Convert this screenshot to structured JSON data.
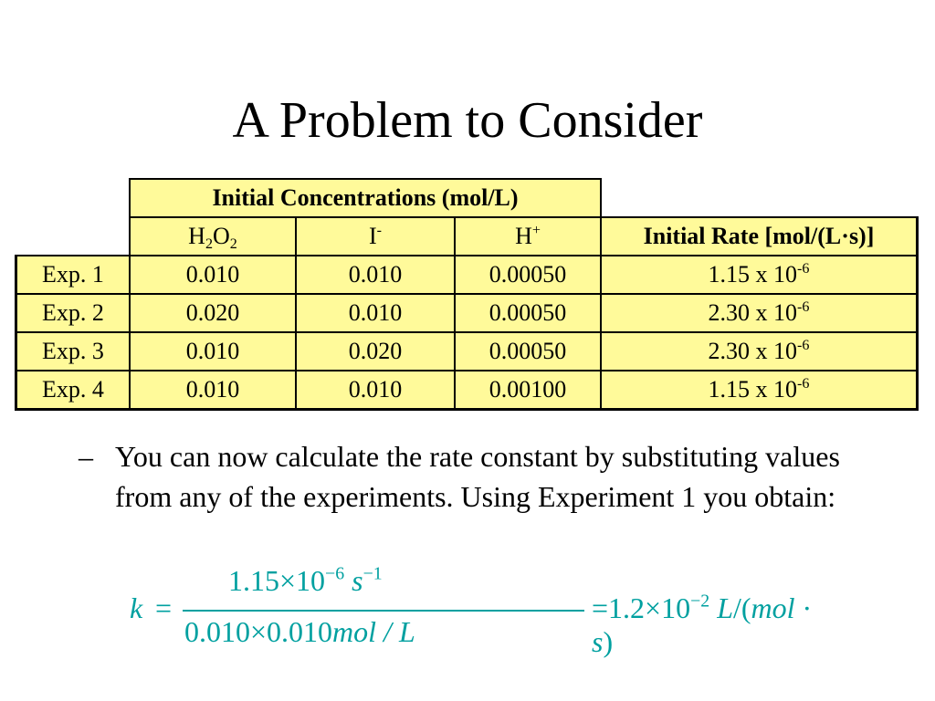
{
  "title": "A Problem to Consider",
  "table": {
    "group_header": "Initial Concentrations (mol/L)",
    "columns": {
      "h2o2_base": "H",
      "h2o2_sub1": "2",
      "h2o2_mid": "O",
      "h2o2_sub2": "2",
      "iodide_base": "I",
      "iodide_sup": "-",
      "hplus_base": "H",
      "hplus_sup": "+",
      "rate_a": "Initial Rate [mol/(L",
      "rate_dot": "·",
      "rate_b": "s)]"
    },
    "rows": [
      {
        "label": "Exp. 1",
        "h2o2": "0.010",
        "iodide": "0.010",
        "hplus": "0.00050",
        "rate": "1.15 x 10",
        "rate_exp": "-6"
      },
      {
        "label": "Exp. 2",
        "h2o2": "0.020",
        "iodide": "0.010",
        "hplus": "0.00050",
        "rate": "2.30 x 10",
        "rate_exp": "-6"
      },
      {
        "label": "Exp. 3",
        "h2o2": "0.010",
        "iodide": "0.020",
        "hplus": "0.00050",
        "rate": "2.30 x 10",
        "rate_exp": "-6"
      },
      {
        "label": "Exp. 4",
        "h2o2": "0.010",
        "iodide": "0.010",
        "hplus": "0.00100",
        "rate": "1.15 x 10",
        "rate_exp": "-6"
      }
    ]
  },
  "bullet": {
    "dash": "–",
    "text": "You can now calculate the rate constant by substituting values from any of the experiments. Using Experiment 1 you obtain:"
  },
  "formula": {
    "k": "k",
    "equals": "=",
    "num_coef": "1.15×10",
    "num_exp": "−6",
    "num_unit": "s",
    "num_unit_exp": "−1",
    "den_values": "0.010×0.010",
    "den_unit": "mol / L",
    "rhs_equals": "=",
    "rhs_coef": "1.2×10",
    "rhs_exp": "−2",
    "rhs_unit_L": "L",
    "rhs_unit_rest": "/(",
    "rhs_unit_mol": "mol",
    "rhs_unit_dot": " · ",
    "rhs_unit_s": "s",
    "rhs_close": ")",
    "color": "#00a0a0"
  },
  "colors": {
    "table_fill": "#fffa9a",
    "formula": "#00a0a0"
  }
}
